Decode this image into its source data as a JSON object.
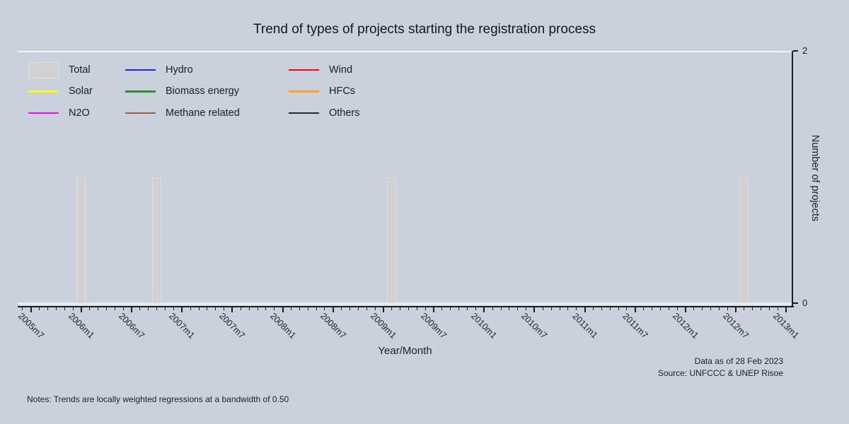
{
  "title": "Trend of types of projects starting the registration process",
  "notes": "Notes: Trends are locally weighted regressions at a bandwidth of 0.50",
  "caption": {
    "data_as_of": "Data as of 28 Feb 2023",
    "source": "Source: UNFCCC & UNEP Risoe"
  },
  "colors": {
    "background": "#c9d2dc",
    "axis": "#1b1f24",
    "bar_fill": "#d1d1d1",
    "bar_border": "#e0e0e0",
    "zero_trend_band": "#e7ebef"
  },
  "legend": {
    "entries": [
      {
        "label": "Total",
        "color": "#d1d1d1",
        "swatch": "bar"
      },
      {
        "label": "Hydro",
        "color": "#2020ff",
        "swatch": "line"
      },
      {
        "label": "Wind",
        "color": "#fe0000",
        "swatch": "line"
      },
      {
        "label": "Solar",
        "color": "#ffff00",
        "swatch": "line"
      },
      {
        "label": "Biomass energy",
        "color": "#2e8f2e",
        "swatch": "line"
      },
      {
        "label": "HFCs",
        "color": "#ffa022",
        "swatch": "line"
      },
      {
        "label": "N2O",
        "color": "#ff00ff",
        "swatch": "line"
      },
      {
        "label": "Methane related",
        "color": "#a25b3f",
        "swatch": "line"
      },
      {
        "label": "Others",
        "color": "#23272b",
        "swatch": "line"
      }
    ]
  },
  "chart_data": {
    "type": "bar",
    "title": "Trend of types of projects starting the registration process",
    "xlabel": "Year/Month",
    "ylabel": "Number of projects",
    "ylim": [
      0,
      2
    ],
    "y_ticks": [
      0,
      2
    ],
    "x_tick_labels": [
      "2005m7",
      "2006m1",
      "2006m7",
      "2007m1",
      "2007m7",
      "2008m1",
      "2008m7",
      "2009m1",
      "2009m7",
      "2010m1",
      "2010m7",
      "2011m1",
      "2011m7",
      "2012m1",
      "2012m7",
      "2013m1"
    ],
    "x_minor_ticks": "monthly between labeled semiannual ticks",
    "bar_series_name": "Total",
    "bars": [
      {
        "x": "2006m1",
        "y": 1
      },
      {
        "x": "2006m10",
        "y": 1
      },
      {
        "x": "2009m2",
        "y": 1
      },
      {
        "x": "2012m8",
        "y": 1
      }
    ],
    "trend_series": [
      {
        "name": "Hydro",
        "constant_y": 0
      },
      {
        "name": "Wind",
        "constant_y": 0
      },
      {
        "name": "Solar",
        "constant_y": 0
      },
      {
        "name": "Biomass energy",
        "constant_y": 0
      },
      {
        "name": "HFCs",
        "constant_y": 0
      },
      {
        "name": "N2O",
        "constant_y": 0
      },
      {
        "name": "Methane related",
        "constant_y": 0
      },
      {
        "name": "Others",
        "constant_y": 0
      }
    ],
    "series_note": "All trend lines lie flat at 0 along the baseline (drawn as a light band above the x-axis)",
    "legend_position": "top-left inside plot, 3 columns x 3 rows",
    "grid": false
  }
}
